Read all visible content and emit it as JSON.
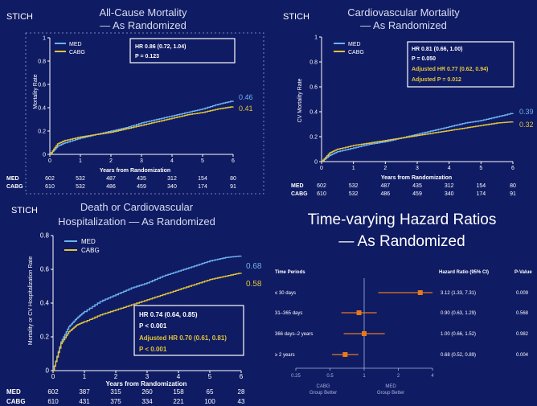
{
  "colors": {
    "background": "#0f1b63",
    "med": "#6fb2f0",
    "cabg": "#e2c43a",
    "forest": "#e8781e",
    "white": "#ffffff"
  },
  "brand": "STICH",
  "panels": {
    "all_cause": {
      "title_line1": "All-Cause Mortality",
      "title_line2": "— As Randomized",
      "ylabel": "Mortality Rate",
      "xlabel": "Years from Randomization",
      "legend": [
        "MED",
        "CABG"
      ],
      "box": [
        "HR 0.86 (0.72, 1.04)",
        "P = 0.123"
      ],
      "end_labels": [
        "0.46",
        "0.41"
      ],
      "risk_table": [
        {
          "group": "MED",
          "counts": [
            "602",
            "532",
            "487",
            "435",
            "312",
            "154",
            "80"
          ]
        },
        {
          "group": "CABG",
          "counts": [
            "610",
            "532",
            "486",
            "459",
            "340",
            "174",
            "91"
          ]
        }
      ]
    },
    "cv": {
      "title_line1": "Cardiovascular Mortality",
      "title_line2": "— As Randomized",
      "ylabel": "CV Mortality Rate",
      "xlabel": "Years from Randomization",
      "legend": [
        "MED",
        "CABG"
      ],
      "box": [
        "HR 0.81 (0.66, 1.00)",
        "P = 0.050",
        "Adjusted HR 0.77 (0.62, 0.94)",
        "Adjusted P = 0.012"
      ],
      "end_labels": [
        "0.39",
        "0.32"
      ],
      "risk_table": [
        {
          "group": "MED",
          "counts": [
            "602",
            "532",
            "487",
            "435",
            "312",
            "154",
            "80"
          ]
        },
        {
          "group": "CABG",
          "counts": [
            "610",
            "532",
            "486",
            "459",
            "340",
            "174",
            "91"
          ]
        }
      ]
    },
    "death_hosp": {
      "title_line1": "Death or Cardiovascular",
      "title_line2": "Hospitalization — As Randomized",
      "ylabel": "Mortality or CV Hospitalization Rate",
      "xlabel": "Years from Randomization",
      "legend": [
        "MED",
        "CABG"
      ],
      "box": [
        "HR 0.74 (0.64, 0.85)",
        "P < 0.001",
        "Adjusted HR 0.70 (0.61, 0.81)",
        "P < 0.001"
      ],
      "end_labels": [
        "0.68",
        "0.58"
      ],
      "risk_table": [
        {
          "group": "MED",
          "counts": [
            "602",
            "387",
            "315",
            "260",
            "158",
            "65",
            "28"
          ]
        },
        {
          "group": "CABG",
          "counts": [
            "610",
            "431",
            "375",
            "334",
            "221",
            "100",
            "43"
          ]
        }
      ]
    },
    "hazard": {
      "title_line1": "Time-varying Hazard Ratios",
      "title_line2": "— As Randomized",
      "col_periods": "Time Periods",
      "col_hr": "Hazard Ratio (95% CI)",
      "col_p": "P-Value",
      "favors_left": [
        "CABG",
        "Group Better"
      ],
      "favors_right": [
        "MED",
        "Group Better"
      ]
    }
  },
  "chart_data": [
    {
      "type": "line",
      "title": "All-Cause Mortality — As Randomized",
      "xlabel": "Years from Randomization",
      "ylabel": "Mortality Rate",
      "xlim": [
        0,
        6
      ],
      "ylim": [
        0,
        1
      ],
      "xticks": [
        "0",
        "1",
        "2",
        "3",
        "4",
        "5",
        "6"
      ],
      "yticks": [
        "0",
        "0.2",
        "0.4",
        "0.6",
        "0.8",
        "1"
      ],
      "legend_position": "top-left",
      "series": [
        {
          "name": "MED",
          "x": [
            0,
            0.25,
            0.5,
            1,
            1.5,
            2,
            2.5,
            3,
            3.5,
            4,
            4.5,
            5,
            5.5,
            6
          ],
          "y": [
            0,
            0.07,
            0.1,
            0.14,
            0.17,
            0.2,
            0.23,
            0.27,
            0.3,
            0.33,
            0.36,
            0.39,
            0.43,
            0.46
          ]
        },
        {
          "name": "CABG",
          "x": [
            0,
            0.25,
            0.5,
            1,
            1.5,
            2,
            2.5,
            3,
            3.5,
            4,
            4.5,
            5,
            5.5,
            6
          ],
          "y": [
            0,
            0.09,
            0.12,
            0.15,
            0.17,
            0.19,
            0.22,
            0.25,
            0.28,
            0.31,
            0.34,
            0.36,
            0.39,
            0.41
          ]
        }
      ]
    },
    {
      "type": "line",
      "title": "Cardiovascular Mortality — As Randomized",
      "xlabel": "Years from Randomization",
      "ylabel": "CV Mortality Rate",
      "xlim": [
        0,
        6
      ],
      "ylim": [
        0,
        1
      ],
      "xticks": [
        "0",
        "1",
        "2",
        "3",
        "4",
        "5",
        "6"
      ],
      "yticks": [
        "0",
        "0.2",
        "0.4",
        "0.6",
        "0.8",
        "1"
      ],
      "legend_position": "top-left",
      "series": [
        {
          "name": "MED",
          "x": [
            0,
            0.25,
            0.5,
            1,
            1.5,
            2,
            2.5,
            3,
            3.5,
            4,
            4.5,
            5,
            5.5,
            6
          ],
          "y": [
            0,
            0.05,
            0.08,
            0.11,
            0.14,
            0.16,
            0.19,
            0.22,
            0.25,
            0.28,
            0.31,
            0.33,
            0.36,
            0.39
          ]
        },
        {
          "name": "CABG",
          "x": [
            0,
            0.25,
            0.5,
            1,
            1.5,
            2,
            2.5,
            3,
            3.5,
            4,
            4.5,
            5,
            5.5,
            6
          ],
          "y": [
            0,
            0.07,
            0.1,
            0.13,
            0.15,
            0.17,
            0.19,
            0.21,
            0.23,
            0.25,
            0.27,
            0.29,
            0.31,
            0.32
          ]
        }
      ]
    },
    {
      "type": "line",
      "title": "Death or Cardiovascular Hospitalization — As Randomized",
      "xlabel": "Years from Randomization",
      "ylabel": "Mortality or CV Hospitalization Rate",
      "xlim": [
        0,
        6
      ],
      "ylim": [
        0,
        0.8
      ],
      "xticks": [
        "0",
        "1",
        "2",
        "3",
        "4",
        "5",
        "6"
      ],
      "yticks": [
        "0",
        "0.2",
        "0.4",
        "0.6",
        "0.8"
      ],
      "legend_position": "top-left",
      "series": [
        {
          "name": "MED",
          "x": [
            0,
            0.25,
            0.5,
            0.75,
            1,
            1.5,
            2,
            2.5,
            3,
            3.5,
            4,
            4.5,
            5,
            5.5,
            6
          ],
          "y": [
            0,
            0.17,
            0.26,
            0.31,
            0.35,
            0.41,
            0.45,
            0.49,
            0.52,
            0.56,
            0.59,
            0.62,
            0.65,
            0.67,
            0.68
          ]
        },
        {
          "name": "CABG",
          "x": [
            0,
            0.25,
            0.5,
            0.75,
            1,
            1.5,
            2,
            2.5,
            3,
            3.5,
            4,
            4.5,
            5,
            5.5,
            6
          ],
          "y": [
            0,
            0.16,
            0.23,
            0.27,
            0.29,
            0.33,
            0.36,
            0.39,
            0.42,
            0.45,
            0.48,
            0.51,
            0.54,
            0.56,
            0.58
          ]
        }
      ]
    },
    {
      "type": "scatter",
      "title": "Time-varying Hazard Ratios — As Randomized",
      "xscale": "log",
      "xlim": [
        0.25,
        4
      ],
      "xticks": [
        "0.25",
        "0.5",
        "1",
        "2",
        "4"
      ],
      "reference_line": 1,
      "rows": [
        {
          "period": "≤ 30 days",
          "hr": 3.12,
          "lo": 1.33,
          "hi": 7.31,
          "hr_text": "3.12 (1.33, 7.31)",
          "p": "0.009"
        },
        {
          "period": "31–365 days",
          "hr": 0.9,
          "lo": 0.63,
          "hi": 1.29,
          "hr_text": "0.90 (0.63, 1.29)",
          "p": "0.568"
        },
        {
          "period": "366 days–2 years",
          "hr": 1.0,
          "lo": 0.66,
          "hi": 1.52,
          "hr_text": "1.00 (0.66, 1.52)",
          "p": "0.982"
        },
        {
          "period": "≥ 2 years",
          "hr": 0.68,
          "lo": 0.52,
          "hi": 0.89,
          "hr_text": "0.68 (0.52, 0.89)",
          "p": "0.004"
        }
      ]
    }
  ]
}
